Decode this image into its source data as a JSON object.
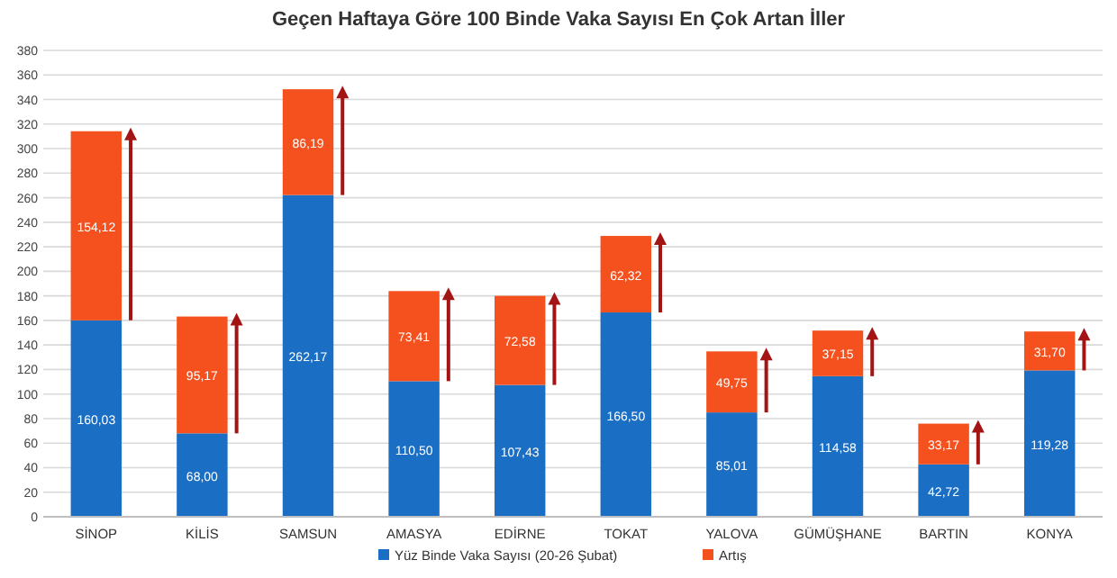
{
  "chart_data": {
    "type": "bar",
    "title": "Geçen Haftaya Göre 100 Binde Vaka Sayısı En Çok Artan İller",
    "stacked": true,
    "categories": [
      "SİNOP",
      "KİLİS",
      "SAMSUN",
      "AMASYA",
      "EDİRNE",
      "TOKAT",
      "YALOVA",
      "GÜMÜŞHANE",
      "BARTIN",
      "KONYA"
    ],
    "series": [
      {
        "name": "Yüz Binde Vaka Sayısı (20-26 Şubat)",
        "color": "#1a6fc4",
        "values": [
          160.03,
          68.0,
          262.17,
          110.5,
          107.43,
          166.5,
          85.01,
          114.58,
          42.72,
          119.28
        ],
        "value_labels": [
          "160,03",
          "68,00",
          "262,17",
          "110,50",
          "107,43",
          "166,50",
          "85,01",
          "114,58",
          "42,72",
          "119,28"
        ]
      },
      {
        "name": "Artış",
        "color": "#f4511e",
        "values": [
          154.12,
          95.17,
          86.19,
          73.41,
          72.58,
          62.32,
          49.75,
          37.15,
          33.17,
          31.7
        ],
        "value_labels": [
          "154,12",
          "95,17",
          "86,19",
          "73,41",
          "72,58",
          "62,32",
          "49,75",
          "37,15",
          "33,17",
          "31,70"
        ]
      }
    ],
    "ylim": [
      0,
      380
    ],
    "yticks": [
      0,
      20,
      40,
      60,
      80,
      100,
      120,
      140,
      160,
      180,
      200,
      220,
      240,
      260,
      280,
      300,
      320,
      340,
      360,
      380
    ],
    "grid": "y",
    "legend": "bottom"
  }
}
